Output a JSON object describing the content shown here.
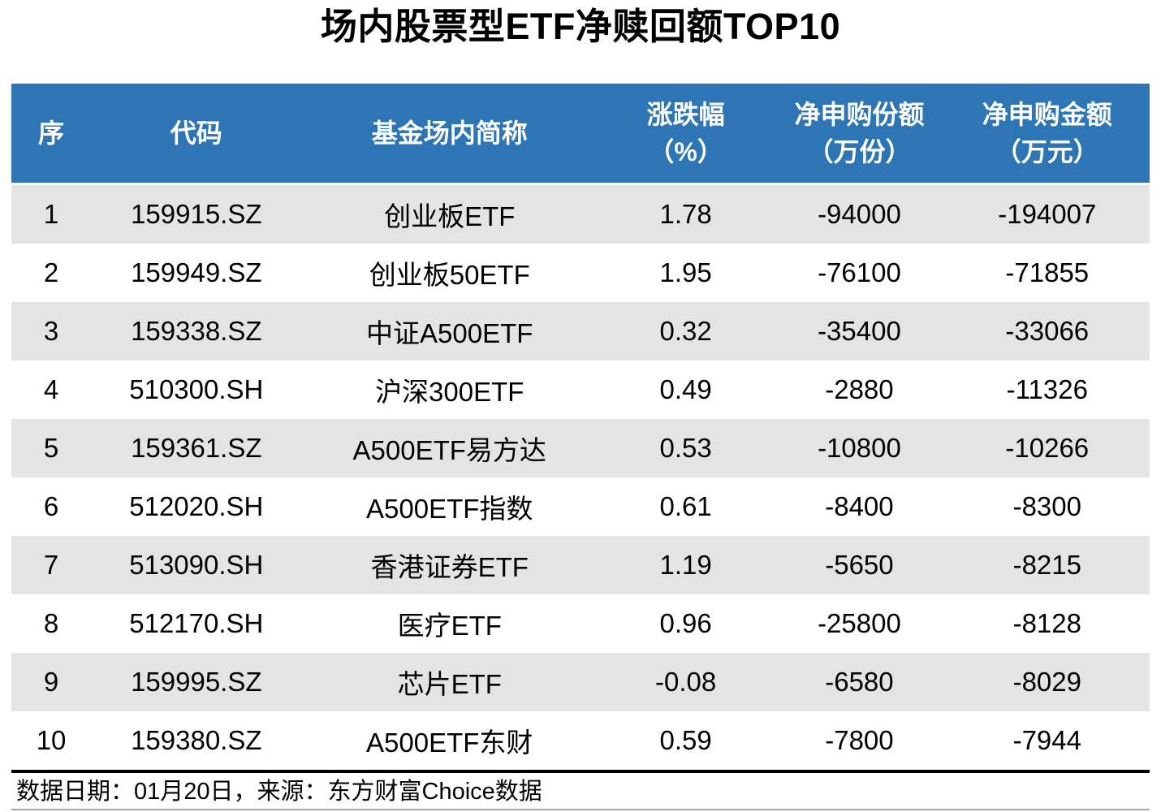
{
  "chart_data": {
    "type": "table",
    "title": "场内股票型ETF净赎回额TOP10",
    "columns": [
      {
        "label": "序",
        "unit": ""
      },
      {
        "label": "代码",
        "unit": ""
      },
      {
        "label": "基金场内简称",
        "unit": ""
      },
      {
        "label": "涨跌幅",
        "unit": "（%）"
      },
      {
        "label": "净申购份额",
        "unit": "（万份）"
      },
      {
        "label": "净申购金额",
        "unit": "（万元）"
      }
    ],
    "rows": [
      {
        "rank": "1",
        "code": "159915.SZ",
        "name": "创业板ETF",
        "change": "1.78",
        "net_shares": "-94000",
        "net_amount": "-194007"
      },
      {
        "rank": "2",
        "code": "159949.SZ",
        "name": "创业板50ETF",
        "change": "1.95",
        "net_shares": "-76100",
        "net_amount": "-71855"
      },
      {
        "rank": "3",
        "code": "159338.SZ",
        "name": "中证A500ETF",
        "change": "0.32",
        "net_shares": "-35400",
        "net_amount": "-33066"
      },
      {
        "rank": "4",
        "code": "510300.SH",
        "name": "沪深300ETF",
        "change": "0.49",
        "net_shares": "-2880",
        "net_amount": "-11326"
      },
      {
        "rank": "5",
        "code": "159361.SZ",
        "name": "A500ETF易方达",
        "change": "0.53",
        "net_shares": "-10800",
        "net_amount": "-10266"
      },
      {
        "rank": "6",
        "code": "512020.SH",
        "name": "A500ETF指数",
        "change": "0.61",
        "net_shares": "-8400",
        "net_amount": "-8300"
      },
      {
        "rank": "7",
        "code": "513090.SH",
        "name": "香港证券ETF",
        "change": "1.19",
        "net_shares": "-5650",
        "net_amount": "-8215"
      },
      {
        "rank": "8",
        "code": "512170.SH",
        "name": "医疗ETF",
        "change": "0.96",
        "net_shares": "-25800",
        "net_amount": "-8128"
      },
      {
        "rank": "9",
        "code": "159995.SZ",
        "name": "芯片ETF",
        "change": "-0.08",
        "net_shares": "-6580",
        "net_amount": "-8029"
      },
      {
        "rank": "10",
        "code": "159380.SZ",
        "name": "A500ETF东财",
        "change": "0.59",
        "net_shares": "-7800",
        "net_amount": "-7944"
      }
    ],
    "footer": "数据日期：01月20日，来源：东方财富Choice数据",
    "colors": {
      "header_bg": "#2E75B6",
      "header_text": "#FFFFFF",
      "stripe_bg": "#E4E4E4",
      "row_bg": "#FFFFFF",
      "text": "#000000",
      "thick_rule": "#000000",
      "thin_rule": "#A6A6A6"
    },
    "layout_hints": {
      "zebra_striped_rows": true,
      "striped_rank_rows": [
        1,
        3,
        5,
        7,
        9
      ]
    }
  }
}
